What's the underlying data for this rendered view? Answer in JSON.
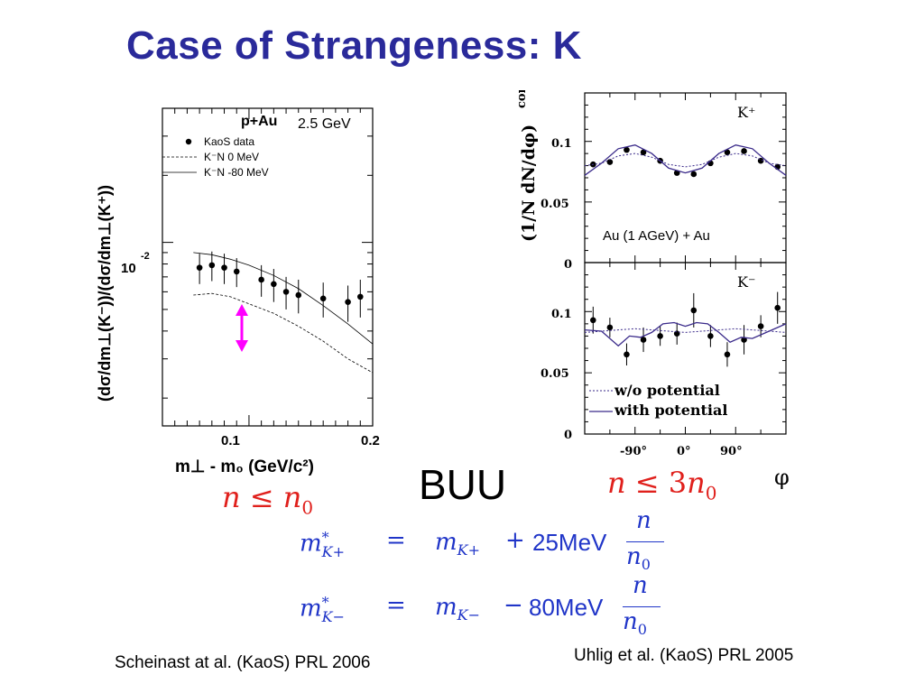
{
  "slide": {
    "title": "Case of Strangeness: K",
    "model_label": "BUU",
    "citation_left": "Scheinast at al. (KaoS) PRL 2006",
    "citation_right": "Uhlig et al. (KaoS) PRL 2005",
    "density_left": {
      "var": "n",
      "rel": "≤",
      "ref": "n",
      "ref_sub": "0"
    },
    "density_right": {
      "var": "n",
      "rel": "≤",
      "coef": "3",
      "ref": "n",
      "ref_sub": "0"
    },
    "equations": [
      {
        "lhs": "m",
        "lhs_sup": "*",
        "lhs_sub": "K+",
        "eq": "=",
        "rhs_m": "m",
        "rhs_sub": "K+",
        "op": "+",
        "value": "25MeV",
        "num": "n",
        "den": "n",
        "den_sub": "0"
      },
      {
        "lhs": "m",
        "lhs_sup": "*",
        "lhs_sub": "K−",
        "eq": "=",
        "rhs_m": "m",
        "rhs_sub": "K−",
        "op": "−",
        "value": "80MeV",
        "num": "n",
        "den": "n",
        "den_sub": "0"
      }
    ]
  },
  "colors": {
    "title": "#2a2a9a",
    "red": "#e0201c",
    "blue": "#2035c8",
    "magenta": "#ff00ff",
    "purple": "#3a2a8a"
  },
  "chart_data": [
    {
      "type": "scatter",
      "title": "p+Au",
      "energy_label": "2.5 GeV",
      "ylabel": "(dσ/dm⊥(K⁻))/(dσ/dm⊥(K⁺))",
      "xlabel": "m⊥ - m₀ (GeV/c²)",
      "xlim": [
        0.03,
        0.2
      ],
      "yscale": "log",
      "ylim": [
        0.0015,
        0.04
      ],
      "x_ticks": [
        "0.1",
        "0.2"
      ],
      "y_tick_label": {
        "mantissa": "10",
        "exponent": "-2"
      },
      "legend": [
        {
          "label": "KaoS data",
          "style": "marker"
        },
        {
          "label": "K⁻N   0 MeV",
          "style": "dashed"
        },
        {
          "label": "K⁻N  -80 MeV",
          "style": "solid"
        }
      ],
      "series": [
        {
          "name": "KaoS data",
          "style": "marker",
          "x": [
            0.06,
            0.07,
            0.08,
            0.09,
            0.11,
            0.12,
            0.13,
            0.14,
            0.16,
            0.18,
            0.19
          ],
          "y": [
            0.0077,
            0.0079,
            0.0077,
            0.0074,
            0.0068,
            0.0065,
            0.006,
            0.0058,
            0.0056,
            0.0054,
            0.0057
          ],
          "err": [
            0.0012,
            0.0012,
            0.0012,
            0.0011,
            0.0011,
            0.0011,
            0.001,
            0.001,
            0.001,
            0.001,
            0.0011
          ]
        },
        {
          "name": "K⁻N   0 MeV",
          "style": "dashed",
          "x": [
            0.055,
            0.07,
            0.085,
            0.1,
            0.12,
            0.14,
            0.16,
            0.18,
            0.2
          ],
          "y": [
            0.0058,
            0.0059,
            0.0057,
            0.0053,
            0.0048,
            0.0042,
            0.0036,
            0.003,
            0.0026
          ]
        },
        {
          "name": "K⁻N  -80 MeV",
          "style": "solid",
          "x": [
            0.055,
            0.07,
            0.085,
            0.1,
            0.12,
            0.14,
            0.16,
            0.18,
            0.2
          ],
          "y": [
            0.009,
            0.0088,
            0.0084,
            0.0079,
            0.0071,
            0.0062,
            0.0052,
            0.0043,
            0.0035
          ]
        }
      ],
      "annotation": "double-headed arrow at m⊥-m₀ ≈ 0.11 between the two model curves"
    },
    {
      "type": "scatter",
      "panel_label": "K⁺",
      "annotation": "Au (1 AGeV) + Au",
      "ylabel": "(1/N dN/dφ)",
      "ylabel_sup": "cor",
      "xlabel": "φ",
      "xlim": [
        -180,
        180
      ],
      "ylim": [
        0,
        0.14
      ],
      "y_ticks": [
        "0",
        "0.05",
        "0.1"
      ],
      "series": [
        {
          "name": "data",
          "style": "marker",
          "x": [
            -165,
            -135,
            -105,
            -75,
            -45,
            -15,
            15,
            45,
            75,
            105,
            135,
            165
          ],
          "y": [
            0.081,
            0.083,
            0.093,
            0.091,
            0.084,
            0.074,
            0.073,
            0.082,
            0.091,
            0.092,
            0.084,
            0.079
          ]
        },
        {
          "name": "w/o potential",
          "style": "dashed",
          "x": [
            -180,
            -150,
            -120,
            -90,
            -60,
            -30,
            0,
            30,
            60,
            90,
            120,
            150,
            180
          ],
          "y": [
            0.08,
            0.082,
            0.088,
            0.09,
            0.087,
            0.081,
            0.079,
            0.081,
            0.087,
            0.09,
            0.088,
            0.082,
            0.08
          ]
        },
        {
          "name": "with potential",
          "style": "solid",
          "x": [
            -180,
            -150,
            -120,
            -90,
            -60,
            -30,
            0,
            30,
            60,
            90,
            120,
            150,
            180
          ],
          "y": [
            0.072,
            0.082,
            0.094,
            0.097,
            0.09,
            0.078,
            0.074,
            0.078,
            0.09,
            0.097,
            0.094,
            0.082,
            0.072
          ]
        }
      ]
    },
    {
      "type": "scatter",
      "panel_label": "K⁻",
      "xlabel": "φ",
      "xlim": [
        -180,
        180
      ],
      "ylim": [
        0,
        0.14
      ],
      "y_ticks": [
        "0",
        "0.05",
        "0.1"
      ],
      "x_ticks": [
        "-90°",
        "0°",
        "90°"
      ],
      "legend": [
        {
          "label": "w/o potential",
          "style": "dashed"
        },
        {
          "label": "with potential",
          "style": "solid"
        }
      ],
      "series": [
        {
          "name": "data",
          "style": "marker",
          "x": [
            -165,
            -135,
            -105,
            -75,
            -45,
            -15,
            15,
            45,
            75,
            105,
            135,
            165
          ],
          "y": [
            0.093,
            0.087,
            0.065,
            0.077,
            0.08,
            0.082,
            0.101,
            0.08,
            0.065,
            0.077,
            0.088,
            0.103
          ],
          "err": [
            0.011,
            0.008,
            0.009,
            0.01,
            0.008,
            0.009,
            0.014,
            0.009,
            0.01,
            0.012,
            0.009,
            0.013
          ]
        },
        {
          "name": "w/o potential",
          "style": "dashed",
          "x": [
            -180,
            -150,
            -120,
            -90,
            -60,
            -30,
            0,
            30,
            60,
            90,
            120,
            150,
            180
          ],
          "y": [
            0.083,
            0.084,
            0.085,
            0.086,
            0.085,
            0.084,
            0.083,
            0.084,
            0.085,
            0.086,
            0.085,
            0.084,
            0.083
          ]
        },
        {
          "name": "with potential",
          "style": "solid",
          "x": [
            -180,
            -150,
            -120,
            -100,
            -80,
            -60,
            -40,
            -20,
            0,
            20,
            40,
            60,
            80,
            100,
            120,
            150,
            180
          ],
          "y": [
            0.085,
            0.084,
            0.072,
            0.08,
            0.079,
            0.083,
            0.09,
            0.091,
            0.088,
            0.091,
            0.09,
            0.083,
            0.075,
            0.079,
            0.078,
            0.084,
            0.09
          ]
        }
      ]
    }
  ]
}
